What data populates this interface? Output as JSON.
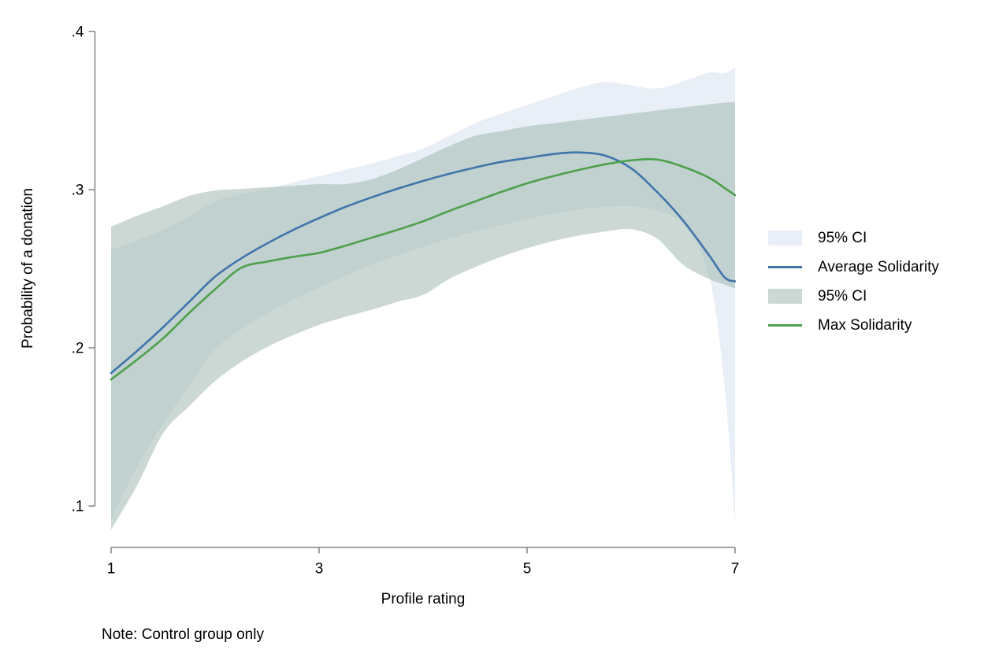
{
  "note": "Note: Control group only",
  "colors": {
    "axis": "#8a8a8a",
    "avg_line": "#3f75aa",
    "max_line": "#4da04c",
    "avg_ci_fill": "#e9eff6",
    "max_ci_fill": "rgba(160,184,176,0.55)",
    "max_ci_legend": "#ccd8d4",
    "text": "#000000"
  },
  "legend": {
    "items": [
      {
        "label": "95% CI",
        "swatch": "area",
        "color": "#e9eff6"
      },
      {
        "label": "Average Solidarity",
        "swatch": "line",
        "color": "#3f75aa"
      },
      {
        "label": "95% CI",
        "swatch": "area",
        "color": "#ccd8d4"
      },
      {
        "label": "Max Solidarity",
        "swatch": "line",
        "color": "#4da04c"
      }
    ]
  },
  "chart_data": {
    "type": "line",
    "title": "",
    "xlabel": "Profile rating",
    "ylabel": "Probability of a donation",
    "xlim": [
      1,
      7
    ],
    "ylim": [
      0.074,
      0.4
    ],
    "grid": false,
    "legend_position": "right",
    "xticks": [
      {
        "v": 1,
        "label": "1"
      },
      {
        "v": 3,
        "label": "3"
      },
      {
        "v": 5,
        "label": "5"
      },
      {
        "v": 7,
        "label": "7"
      }
    ],
    "yticks": [
      {
        "v": 0.4,
        "label": ".4"
      },
      {
        "v": 0.3,
        "label": ".3"
      },
      {
        "v": 0.2,
        "label": ".2"
      },
      {
        "v": 0.1,
        "label": ".1"
      }
    ],
    "x": [
      1,
      1.25,
      1.5,
      1.75,
      2,
      2.25,
      2.5,
      2.75,
      3,
      3.25,
      3.5,
      3.75,
      4,
      4.25,
      4.5,
      4.75,
      5,
      5.25,
      5.5,
      5.75,
      6,
      6.25,
      6.5,
      6.75,
      6.9,
      7
    ],
    "series": [
      {
        "name": "95% CI",
        "role": "band",
        "of": "Average Solidarity",
        "top": [
          0.262,
          0.268,
          0.2745,
          0.283,
          0.2925,
          0.297,
          0.3005,
          0.3045,
          0.3085,
          0.3125,
          0.3165,
          0.321,
          0.326,
          0.334,
          0.342,
          0.348,
          0.3535,
          0.359,
          0.3645,
          0.368,
          0.366,
          0.364,
          0.3685,
          0.374,
          0.3735,
          0.3775
        ],
        "bottom": [
          0.092,
          0.125,
          0.152,
          0.176,
          0.199,
          0.2115,
          0.222,
          0.2305,
          0.238,
          0.2455,
          0.2525,
          0.2585,
          0.264,
          0.269,
          0.2735,
          0.2775,
          0.2815,
          0.2845,
          0.2875,
          0.289,
          0.2895,
          0.2865,
          0.278,
          0.2455,
          0.175,
          0.088
        ]
      },
      {
        "name": "Average Solidarity",
        "role": "line",
        "values": [
          0.184,
          0.198,
          0.213,
          0.229,
          0.245,
          0.2565,
          0.266,
          0.2745,
          0.282,
          0.289,
          0.295,
          0.3005,
          0.3055,
          0.31,
          0.314,
          0.3175,
          0.32,
          0.3225,
          0.3235,
          0.3215,
          0.3135,
          0.2985,
          0.2805,
          0.2585,
          0.2445,
          0.242
        ]
      },
      {
        "name": "95% CI",
        "role": "band",
        "of": "Max Solidarity",
        "top": [
          0.2765,
          0.2835,
          0.2895,
          0.296,
          0.2995,
          0.3005,
          0.3015,
          0.3025,
          0.3035,
          0.3035,
          0.3065,
          0.3125,
          0.32,
          0.3275,
          0.334,
          0.337,
          0.34,
          0.342,
          0.344,
          0.346,
          0.348,
          0.35,
          0.352,
          0.354,
          0.355,
          0.3555
        ],
        "bottom": [
          0.085,
          0.113,
          0.146,
          0.163,
          0.179,
          0.191,
          0.2005,
          0.208,
          0.2145,
          0.2195,
          0.224,
          0.229,
          0.2335,
          0.2435,
          0.251,
          0.2575,
          0.263,
          0.2675,
          0.271,
          0.2735,
          0.275,
          0.269,
          0.2525,
          0.2435,
          0.24,
          0.2375
        ]
      },
      {
        "name": "Max Solidarity",
        "role": "line",
        "values": [
          0.18,
          0.1925,
          0.206,
          0.222,
          0.237,
          0.2505,
          0.2545,
          0.2575,
          0.26,
          0.2645,
          0.2695,
          0.2745,
          0.28,
          0.2865,
          0.2925,
          0.2985,
          0.304,
          0.3085,
          0.3125,
          0.316,
          0.3185,
          0.319,
          0.3145,
          0.3075,
          0.301,
          0.2965
        ]
      }
    ]
  }
}
